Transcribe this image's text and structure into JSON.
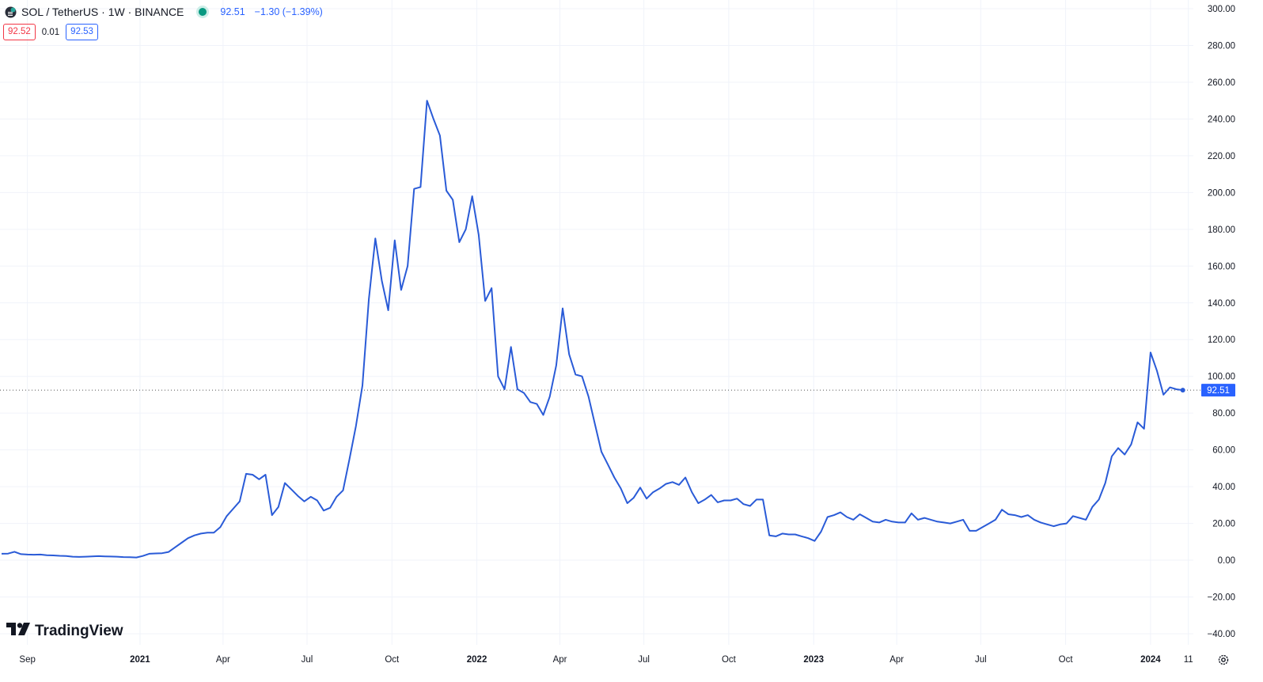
{
  "header": {
    "symbol_title": "SOL / TetherUS · 1W · BINANCE",
    "last_price": "92.51",
    "change": "−1.30 (−1.39%)",
    "bid": "92.52",
    "spread": "0.01",
    "ask": "92.53",
    "icons": [
      "symbol-logo-icon",
      "market-status-dot-icon"
    ]
  },
  "branding": {
    "logo_text": "TradingView",
    "icon": "tradingview-logo-icon"
  },
  "colors": {
    "line": "#2a5bd7",
    "price_label_bg": "#2962ff",
    "bid": "#f23645",
    "ask": "#2962ff",
    "status": "#089981"
  },
  "chart_data": {
    "type": "line",
    "title": "SOL / TetherUS · 1W · BINANCE",
    "xlabel": "",
    "ylabel": "",
    "ylim": [
      -40,
      300
    ],
    "xlim": [
      "2020-08-04",
      "2024-02-25"
    ],
    "grid": true,
    "x_ticks": [
      {
        "label": "Sep",
        "date": "2020-09-01",
        "bold": false
      },
      {
        "label": "2021",
        "date": "2021-01-01",
        "bold": true
      },
      {
        "label": "Apr",
        "date": "2021-04-01",
        "bold": false
      },
      {
        "label": "Jul",
        "date": "2021-07-01",
        "bold": false
      },
      {
        "label": "Oct",
        "date": "2021-10-01",
        "bold": false
      },
      {
        "label": "2022",
        "date": "2022-01-01",
        "bold": true
      },
      {
        "label": "Apr",
        "date": "2022-04-01",
        "bold": false
      },
      {
        "label": "Jul",
        "date": "2022-07-01",
        "bold": false
      },
      {
        "label": "Oct",
        "date": "2022-10-01",
        "bold": false
      },
      {
        "label": "2023",
        "date": "2023-01-01",
        "bold": true
      },
      {
        "label": "Apr",
        "date": "2023-04-01",
        "bold": false
      },
      {
        "label": "Jul",
        "date": "2023-07-01",
        "bold": false
      },
      {
        "label": "Oct",
        "date": "2023-10-01",
        "bold": false
      },
      {
        "label": "2024",
        "date": "2024-01-01",
        "bold": true
      },
      {
        "label": "11",
        "date": "2024-02-11",
        "bold": false
      }
    ],
    "y_ticks": [
      "300.00",
      "280.00",
      "260.00",
      "240.00",
      "220.00",
      "200.00",
      "180.00",
      "160.00",
      "140.00",
      "120.00",
      "100.00",
      "80.00",
      "60.00",
      "40.00",
      "20.00",
      "0.00",
      "−20.00",
      "−40.00"
    ],
    "current_price": {
      "value": 92.51,
      "label": "92.51"
    },
    "series": [
      {
        "values": [
          [
            "2020-08-04",
            3.5
          ],
          [
            "2020-08-11",
            3.6
          ],
          [
            "2020-08-18",
            4.6
          ],
          [
            "2020-08-25",
            3.3
          ],
          [
            "2020-09-01",
            3.1
          ],
          [
            "2020-09-08",
            3.0
          ],
          [
            "2020-09-15",
            3.1
          ],
          [
            "2020-09-22",
            2.7
          ],
          [
            "2020-09-29",
            2.6
          ],
          [
            "2020-10-06",
            2.4
          ],
          [
            "2020-10-13",
            2.3
          ],
          [
            "2020-10-20",
            1.9
          ],
          [
            "2020-10-27",
            1.8
          ],
          [
            "2020-11-03",
            1.9
          ],
          [
            "2020-11-10",
            2.1
          ],
          [
            "2020-11-17",
            2.2
          ],
          [
            "2020-11-24",
            2.1
          ],
          [
            "2020-11-30",
            2.0
          ],
          [
            "2020-12-07",
            1.9
          ],
          [
            "2020-12-14",
            1.7
          ],
          [
            "2020-12-21",
            1.6
          ],
          [
            "2020-12-28",
            1.5
          ],
          [
            "2021-01-04",
            2.3
          ],
          [
            "2021-01-11",
            3.5
          ],
          [
            "2021-01-18",
            3.7
          ],
          [
            "2021-01-25",
            3.8
          ],
          [
            "2021-02-01",
            4.5
          ],
          [
            "2021-02-08",
            7.0
          ],
          [
            "2021-02-15",
            9.5
          ],
          [
            "2021-02-22",
            12.0
          ],
          [
            "2021-03-01",
            13.5
          ],
          [
            "2021-03-08",
            14.5
          ],
          [
            "2021-03-15",
            15.0
          ],
          [
            "2021-03-22",
            15.0
          ],
          [
            "2021-03-29",
            18.0
          ],
          [
            "2021-04-05",
            24.0
          ],
          [
            "2021-04-12",
            28.0
          ],
          [
            "2021-04-19",
            32.0
          ],
          [
            "2021-04-26",
            47.0
          ],
          [
            "2021-05-03",
            46.5
          ],
          [
            "2021-05-10",
            44.0
          ],
          [
            "2021-05-17",
            46.5
          ],
          [
            "2021-05-24",
            24.5
          ],
          [
            "2021-05-31",
            29.0
          ],
          [
            "2021-06-07",
            42.0
          ],
          [
            "2021-06-14",
            38.5
          ],
          [
            "2021-06-21",
            35.0
          ],
          [
            "2021-06-28",
            32.0
          ],
          [
            "2021-07-05",
            34.5
          ],
          [
            "2021-07-12",
            32.5
          ],
          [
            "2021-07-19",
            27.0
          ],
          [
            "2021-07-26",
            28.5
          ],
          [
            "2021-08-02",
            34.5
          ],
          [
            "2021-08-09",
            38.0
          ],
          [
            "2021-08-16",
            55.0
          ],
          [
            "2021-08-23",
            73.0
          ],
          [
            "2021-08-30",
            95.0
          ],
          [
            "2021-09-06",
            142.0
          ],
          [
            "2021-09-13",
            175.0
          ],
          [
            "2021-09-20",
            152.0
          ],
          [
            "2021-09-27",
            136.0
          ],
          [
            "2021-10-04",
            174.0
          ],
          [
            "2021-10-11",
            147.0
          ],
          [
            "2021-10-18",
            160.0
          ],
          [
            "2021-10-25",
            202.0
          ],
          [
            "2021-11-01",
            203.0
          ],
          [
            "2021-11-08",
            250.0
          ],
          [
            "2021-11-15",
            240.0
          ],
          [
            "2021-11-22",
            231.0
          ],
          [
            "2021-11-29",
            201.0
          ],
          [
            "2021-12-06",
            196.0
          ],
          [
            "2021-12-13",
            173.0
          ],
          [
            "2021-12-20",
            180.0
          ],
          [
            "2021-12-27",
            198.0
          ],
          [
            "2022-01-03",
            177.0
          ],
          [
            "2022-01-10",
            141.0
          ],
          [
            "2022-01-17",
            148.0
          ],
          [
            "2022-01-24",
            100.0
          ],
          [
            "2022-01-31",
            93.0
          ],
          [
            "2022-02-07",
            116.0
          ],
          [
            "2022-02-14",
            93.0
          ],
          [
            "2022-02-21",
            91.0
          ],
          [
            "2022-02-28",
            86.0
          ],
          [
            "2022-03-07",
            85.0
          ],
          [
            "2022-03-14",
            79.0
          ],
          [
            "2022-03-21",
            89.0
          ],
          [
            "2022-03-28",
            106.0
          ],
          [
            "2022-04-04",
            137.0
          ],
          [
            "2022-04-11",
            112.0
          ],
          [
            "2022-04-18",
            101.0
          ],
          [
            "2022-04-25",
            100.0
          ],
          [
            "2022-05-02",
            89.0
          ],
          [
            "2022-05-09",
            74.0
          ],
          [
            "2022-05-16",
            59.0
          ],
          [
            "2022-05-23",
            52.0
          ],
          [
            "2022-05-30",
            45.0
          ],
          [
            "2022-06-06",
            39.0
          ],
          [
            "2022-06-13",
            31.0
          ],
          [
            "2022-06-20",
            34.0
          ],
          [
            "2022-06-27",
            39.5
          ],
          [
            "2022-07-04",
            33.5
          ],
          [
            "2022-07-11",
            37.0
          ],
          [
            "2022-07-18",
            39.0
          ],
          [
            "2022-07-25",
            41.5
          ],
          [
            "2022-08-01",
            42.5
          ],
          [
            "2022-08-08",
            41.0
          ],
          [
            "2022-08-15",
            45.0
          ],
          [
            "2022-08-22",
            37.0
          ],
          [
            "2022-08-29",
            31.0
          ],
          [
            "2022-09-05",
            33.0
          ],
          [
            "2022-09-12",
            35.5
          ],
          [
            "2022-09-19",
            31.5
          ],
          [
            "2022-09-26",
            32.5
          ],
          [
            "2022-10-03",
            32.5
          ],
          [
            "2022-10-10",
            33.5
          ],
          [
            "2022-10-17",
            30.5
          ],
          [
            "2022-10-24",
            29.5
          ],
          [
            "2022-10-31",
            33.0
          ],
          [
            "2022-11-07",
            33.0
          ],
          [
            "2022-11-14",
            13.5
          ],
          [
            "2022-11-21",
            13.0
          ],
          [
            "2022-11-28",
            14.5
          ],
          [
            "2022-12-05",
            14.0
          ],
          [
            "2022-12-12",
            14.0
          ],
          [
            "2022-12-19",
            13.0
          ],
          [
            "2022-12-26",
            12.0
          ],
          [
            "2023-01-02",
            10.5
          ],
          [
            "2023-01-09",
            15.5
          ],
          [
            "2023-01-16",
            23.5
          ],
          [
            "2023-01-23",
            24.5
          ],
          [
            "2023-01-30",
            26.0
          ],
          [
            "2023-02-06",
            23.5
          ],
          [
            "2023-02-13",
            22.0
          ],
          [
            "2023-02-20",
            25.0
          ],
          [
            "2023-02-27",
            23.0
          ],
          [
            "2023-03-06",
            21.0
          ],
          [
            "2023-03-13",
            20.5
          ],
          [
            "2023-03-20",
            22.0
          ],
          [
            "2023-03-27",
            21.0
          ],
          [
            "2023-04-03",
            20.5
          ],
          [
            "2023-04-10",
            20.5
          ],
          [
            "2023-04-17",
            25.5
          ],
          [
            "2023-04-24",
            22.0
          ],
          [
            "2023-05-01",
            23.0
          ],
          [
            "2023-05-08",
            22.0
          ],
          [
            "2023-05-15",
            21.0
          ],
          [
            "2023-05-22",
            20.5
          ],
          [
            "2023-05-29",
            20.0
          ],
          [
            "2023-06-05",
            21.0
          ],
          [
            "2023-06-12",
            22.0
          ],
          [
            "2023-06-19",
            16.0
          ],
          [
            "2023-06-26",
            16.0
          ],
          [
            "2023-07-03",
            18.0
          ],
          [
            "2023-07-10",
            20.0
          ],
          [
            "2023-07-17",
            22.0
          ],
          [
            "2023-07-24",
            27.5
          ],
          [
            "2023-07-31",
            25.0
          ],
          [
            "2023-08-07",
            24.5
          ],
          [
            "2023-08-14",
            23.5
          ],
          [
            "2023-08-21",
            24.5
          ],
          [
            "2023-08-28",
            22.0
          ],
          [
            "2023-09-04",
            20.5
          ],
          [
            "2023-09-11",
            19.5
          ],
          [
            "2023-09-18",
            18.5
          ],
          [
            "2023-09-25",
            19.5
          ],
          [
            "2023-10-02",
            20.0
          ],
          [
            "2023-10-09",
            24.0
          ],
          [
            "2023-10-16",
            23.0
          ],
          [
            "2023-10-23",
            22.0
          ],
          [
            "2023-10-30",
            29.0
          ],
          [
            "2023-11-06",
            33.0
          ],
          [
            "2023-11-13",
            42.0
          ],
          [
            "2023-11-20",
            56.5
          ],
          [
            "2023-11-27",
            61.0
          ],
          [
            "2023-12-04",
            57.5
          ],
          [
            "2023-12-11",
            63.0
          ],
          [
            "2023-12-18",
            75.0
          ],
          [
            "2023-12-25",
            71.5
          ],
          [
            "2024-01-01",
            113.0
          ],
          [
            "2024-01-08",
            103.0
          ],
          [
            "2024-01-15",
            90.0
          ],
          [
            "2024-01-22",
            94.0
          ],
          [
            "2024-01-29",
            93.0
          ],
          [
            "2024-02-05",
            92.51
          ]
        ]
      }
    ]
  }
}
